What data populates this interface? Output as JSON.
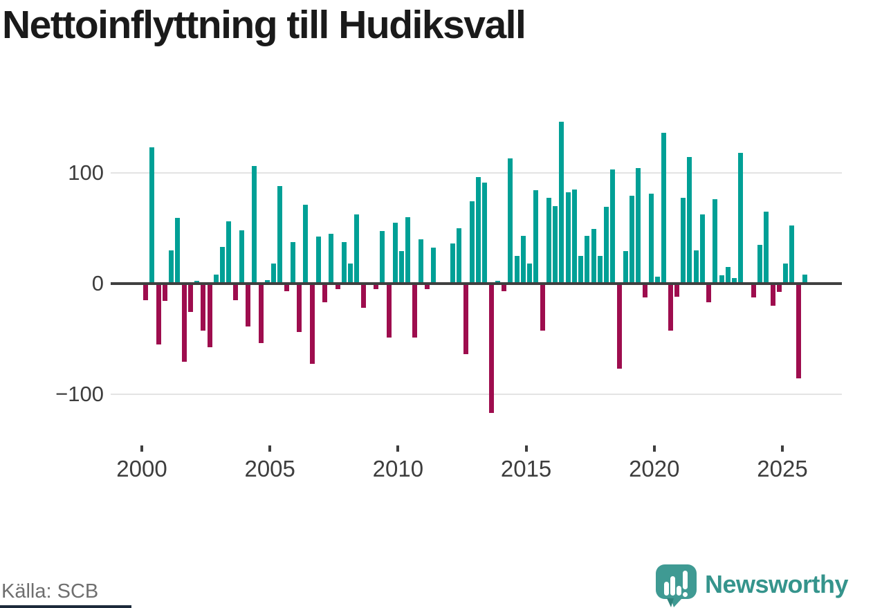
{
  "title": "Nettoinflyttning till Hudiksvall",
  "source": "Källa: SCB",
  "logo": {
    "wordmark": "Newsworthy",
    "bubble_color": "#3f9a93",
    "bubble_shadow_color": "#2f837c",
    "wordmark_color": "#35948c"
  },
  "colors": {
    "positive_bar": "#00a096",
    "negative_bar": "#9e0d4e",
    "zero_axis": "#3f3f3f",
    "gridline": "#e3e3e3",
    "axis_label": "#3d3d3d",
    "source_text": "#6f6f6f",
    "footer_bar": "#1c2a3a"
  },
  "chart_data": {
    "type": "bar",
    "title": "Nettoinflyttning till Hudiksvall",
    "frequency": "quarterly",
    "start": "2000 Q1",
    "series": [
      {
        "year": 2000,
        "quarters": [
          -15,
          123,
          -55,
          -16
        ]
      },
      {
        "year": 2001,
        "quarters": [
          30,
          59,
          -71,
          -26
        ]
      },
      {
        "year": 2002,
        "quarters": [
          2,
          -43,
          -58,
          8
        ]
      },
      {
        "year": 2003,
        "quarters": [
          33,
          56,
          -15,
          48
        ]
      },
      {
        "year": 2004,
        "quarters": [
          -39,
          106,
          -54,
          3
        ]
      },
      {
        "year": 2005,
        "quarters": [
          18,
          88,
          -7,
          37
        ]
      },
      {
        "year": 2006,
        "quarters": [
          -44,
          71,
          -73,
          42
        ]
      },
      {
        "year": 2007,
        "quarters": [
          -17,
          45,
          -5,
          37
        ]
      },
      {
        "year": 2008,
        "quarters": [
          18,
          62,
          -22,
          0
        ]
      },
      {
        "year": 2009,
        "quarters": [
          -5,
          47,
          -49,
          55
        ]
      },
      {
        "year": 2010,
        "quarters": [
          29,
          60,
          -49,
          40
        ]
      },
      {
        "year": 2011,
        "quarters": [
          -5,
          32,
          0,
          0
        ]
      },
      {
        "year": 2012,
        "quarters": [
          36,
          50,
          -64,
          74
        ]
      },
      {
        "year": 2013,
        "quarters": [
          96,
          91,
          -117,
          2
        ]
      },
      {
        "year": 2014,
        "quarters": [
          -7,
          113,
          25,
          43
        ]
      },
      {
        "year": 2015,
        "quarters": [
          18,
          84,
          -43,
          77
        ]
      },
      {
        "year": 2016,
        "quarters": [
          70,
          146,
          82,
          85
        ]
      },
      {
        "year": 2017,
        "quarters": [
          25,
          43,
          49,
          25
        ]
      },
      {
        "year": 2018,
        "quarters": [
          69,
          103,
          -77,
          29
        ]
      },
      {
        "year": 2019,
        "quarters": [
          79,
          104,
          -13,
          81
        ]
      },
      {
        "year": 2020,
        "quarters": [
          6,
          136,
          -43,
          -12
        ]
      },
      {
        "year": 2021,
        "quarters": [
          77,
          114,
          30,
          62
        ]
      },
      {
        "year": 2022,
        "quarters": [
          -17,
          76,
          7,
          15
        ]
      },
      {
        "year": 2023,
        "quarters": [
          5,
          118,
          0,
          -13
        ]
      },
      {
        "year": 2024,
        "quarters": [
          35,
          65,
          -20,
          -8
        ]
      },
      {
        "year": 2025,
        "quarters": [
          18,
          52,
          -86,
          8
        ]
      }
    ],
    "xticks": [
      "2000",
      "2005",
      "2010",
      "2015",
      "2020",
      "2025"
    ],
    "yticks": [
      {
        "label": "100",
        "value": 100
      },
      {
        "label": "0",
        "value": 0
      },
      {
        "label": "−100",
        "value": -100
      }
    ],
    "gridlines_at": [
      100,
      -100
    ],
    "ylim": [
      -130,
      155
    ],
    "legend": "none"
  }
}
